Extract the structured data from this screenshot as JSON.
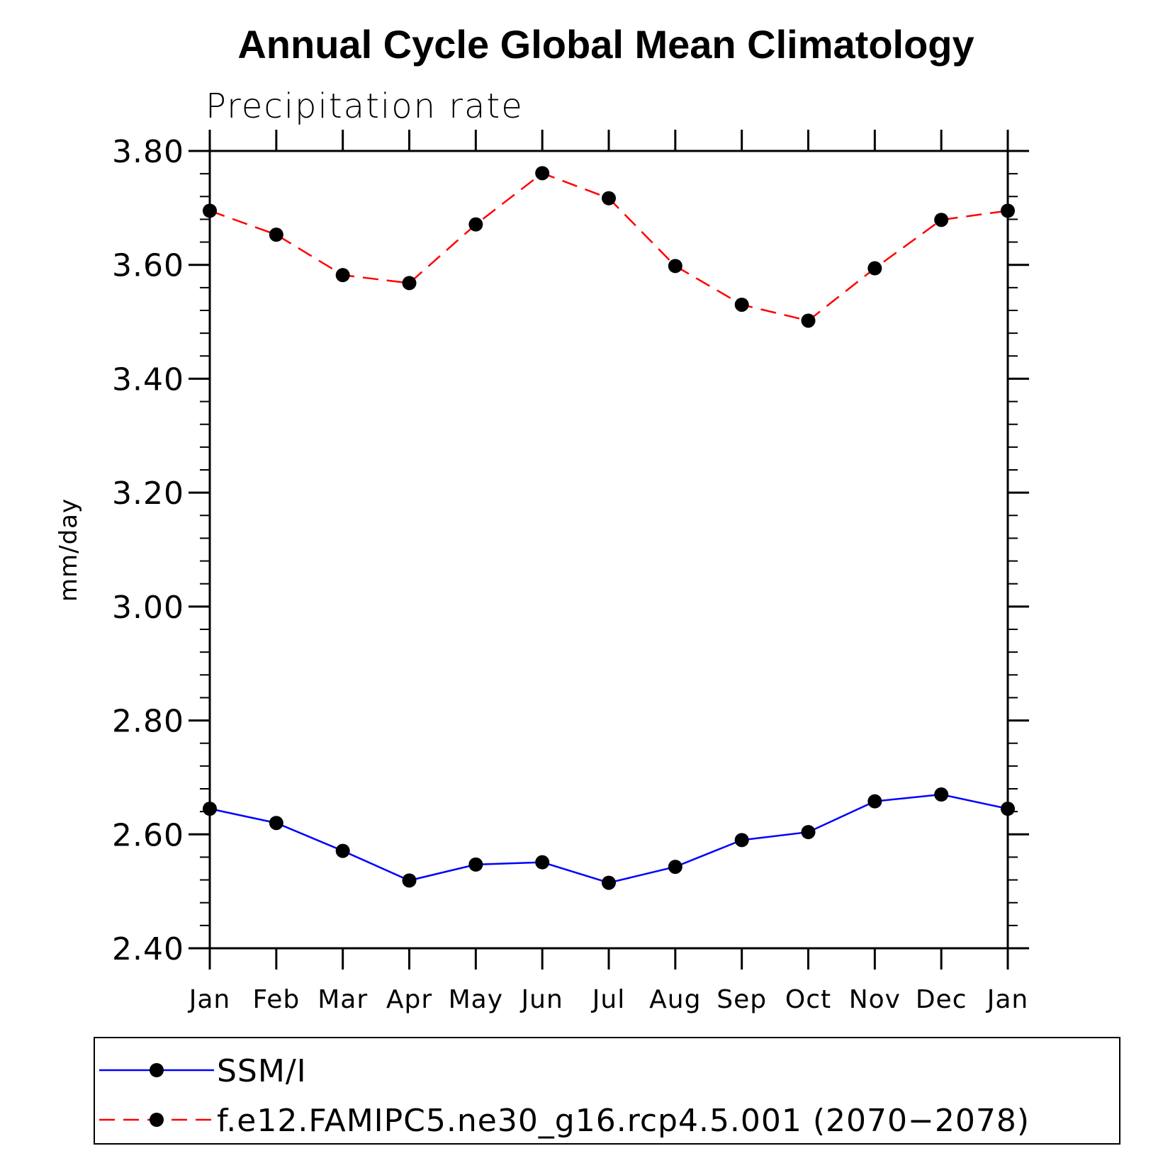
{
  "chart_data": {
    "type": "line",
    "title": "Annual Cycle Global Mean Climatology",
    "subtitle": "Precipitation rate",
    "xlabel": "",
    "ylabel": "mm/day",
    "categories": [
      "Jan",
      "Feb",
      "Mar",
      "Apr",
      "May",
      "Jun",
      "Jul",
      "Aug",
      "Sep",
      "Oct",
      "Nov",
      "Dec",
      "Jan"
    ],
    "ylim": [
      2.4,
      3.8
    ],
    "yticks": [
      "2.40",
      "2.60",
      "2.80",
      "3.00",
      "3.20",
      "3.40",
      "3.60",
      "3.80"
    ],
    "grid": false,
    "legend_position": "bottom",
    "series": [
      {
        "name": "SSM/I",
        "color": "#0000ff",
        "line_style": "solid",
        "marker": "filled-circle",
        "values": [
          2.645,
          2.62,
          2.571,
          2.519,
          2.547,
          2.551,
          2.515,
          2.543,
          2.59,
          2.604,
          2.658,
          2.67,
          2.645
        ]
      },
      {
        "name": "f.e12.FAMIPC5.ne30_g16.rcp4.5.001 (2070−2078)",
        "color": "#ff0000",
        "line_style": "dashed",
        "marker": "filled-circle",
        "values": [
          3.695,
          3.653,
          3.582,
          3.568,
          3.671,
          3.761,
          3.717,
          3.598,
          3.53,
          3.502,
          3.594,
          3.679,
          3.695
        ]
      }
    ]
  }
}
